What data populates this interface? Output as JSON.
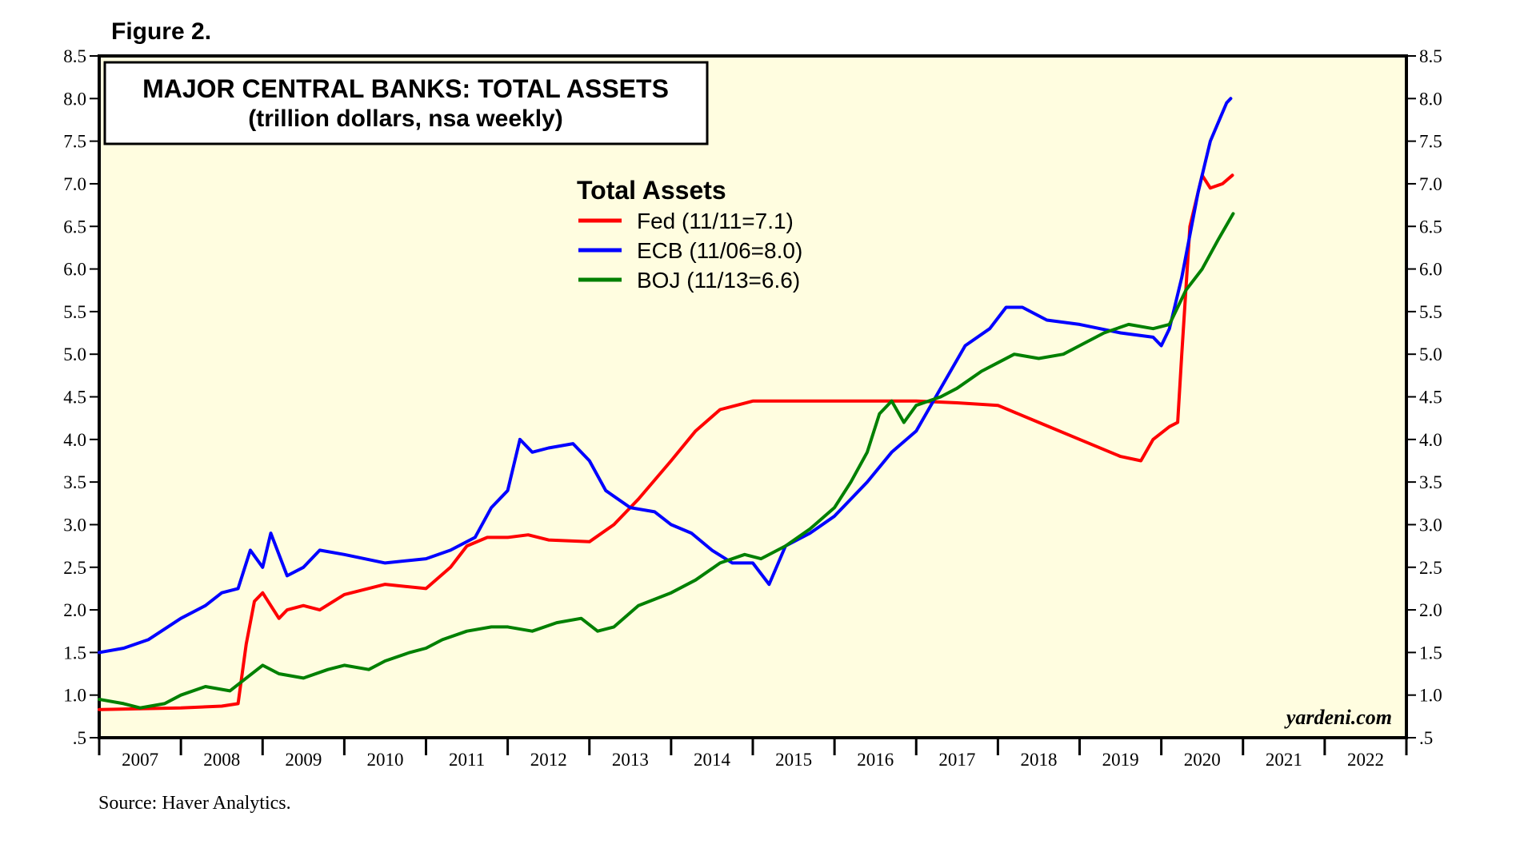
{
  "figure_label": "Figure 2.",
  "title": {
    "line1": "MAJOR CENTRAL BANKS: TOTAL ASSETS",
    "line2": "(trillion dollars, nsa weekly)"
  },
  "legend": {
    "title": "Total Assets",
    "placement": "upper-center"
  },
  "watermark": "yardeni.com",
  "source": "Source: Haver Analytics.",
  "colors": {
    "background": "#fffde0",
    "Fed": "#ff0000",
    "ECB": "#0000ff",
    "BOJ": "#008000"
  },
  "chart_data": {
    "type": "line",
    "title": "MAJOR CENTRAL BANKS: TOTAL ASSETS",
    "subtitle": "(trillion dollars, nsa weekly)",
    "xlabel": "",
    "ylabel": "",
    "xlim": [
      2007,
      2023
    ],
    "ylim": [
      0.5,
      8.5
    ],
    "x_ticks": [
      "2007",
      "2008",
      "2009",
      "2010",
      "2011",
      "2012",
      "2013",
      "2014",
      "2015",
      "2016",
      "2017",
      "2018",
      "2019",
      "2020",
      "2021",
      "2022"
    ],
    "y_ticks": [
      ".5",
      "1.0",
      "1.5",
      "2.0",
      "2.5",
      "3.0",
      "3.5",
      "4.0",
      "4.5",
      "5.0",
      "5.5",
      "6.0",
      "6.5",
      "7.0",
      "7.5",
      "8.0",
      "8.5"
    ],
    "grid": false,
    "legend_position": "upper-center",
    "series": [
      {
        "name": "Fed",
        "label": "Fed (11/11=7.1)",
        "color": "#ff0000",
        "points": [
          [
            2007.0,
            0.83
          ],
          [
            2007.5,
            0.84
          ],
          [
            2008.0,
            0.85
          ],
          [
            2008.5,
            0.87
          ],
          [
            2008.7,
            0.9
          ],
          [
            2008.8,
            1.6
          ],
          [
            2008.9,
            2.1
          ],
          [
            2009.0,
            2.2
          ],
          [
            2009.1,
            2.05
          ],
          [
            2009.2,
            1.9
          ],
          [
            2009.3,
            2.0
          ],
          [
            2009.5,
            2.05
          ],
          [
            2009.7,
            2.0
          ],
          [
            2010.0,
            2.18
          ],
          [
            2010.5,
            2.3
          ],
          [
            2011.0,
            2.25
          ],
          [
            2011.3,
            2.5
          ],
          [
            2011.5,
            2.75
          ],
          [
            2011.75,
            2.85
          ],
          [
            2012.0,
            2.85
          ],
          [
            2012.25,
            2.88
          ],
          [
            2012.5,
            2.82
          ],
          [
            2013.0,
            2.8
          ],
          [
            2013.3,
            3.0
          ],
          [
            2013.6,
            3.3
          ],
          [
            2014.0,
            3.75
          ],
          [
            2014.3,
            4.1
          ],
          [
            2014.6,
            4.35
          ],
          [
            2015.0,
            4.45
          ],
          [
            2016.0,
            4.45
          ],
          [
            2017.0,
            4.45
          ],
          [
            2017.5,
            4.43
          ],
          [
            2018.0,
            4.4
          ],
          [
            2018.5,
            4.2
          ],
          [
            2019.0,
            4.0
          ],
          [
            2019.5,
            3.8
          ],
          [
            2019.75,
            3.75
          ],
          [
            2019.9,
            4.0
          ],
          [
            2020.1,
            4.15
          ],
          [
            2020.2,
            4.2
          ],
          [
            2020.25,
            5.0
          ],
          [
            2020.35,
            6.5
          ],
          [
            2020.5,
            7.1
          ],
          [
            2020.6,
            6.95
          ],
          [
            2020.75,
            7.0
          ],
          [
            2020.87,
            7.1
          ]
        ]
      },
      {
        "name": "ECB",
        "label": "ECB (11/06=8.0)",
        "color": "#0000ff",
        "points": [
          [
            2007.0,
            1.5
          ],
          [
            2007.3,
            1.55
          ],
          [
            2007.6,
            1.65
          ],
          [
            2008.0,
            1.9
          ],
          [
            2008.3,
            2.05
          ],
          [
            2008.5,
            2.2
          ],
          [
            2008.7,
            2.25
          ],
          [
            2008.85,
            2.7
          ],
          [
            2009.0,
            2.5
          ],
          [
            2009.1,
            2.9
          ],
          [
            2009.3,
            2.4
          ],
          [
            2009.5,
            2.5
          ],
          [
            2009.7,
            2.7
          ],
          [
            2010.0,
            2.65
          ],
          [
            2010.5,
            2.55
          ],
          [
            2011.0,
            2.6
          ],
          [
            2011.3,
            2.7
          ],
          [
            2011.6,
            2.85
          ],
          [
            2011.8,
            3.2
          ],
          [
            2012.0,
            3.4
          ],
          [
            2012.15,
            4.0
          ],
          [
            2012.3,
            3.85
          ],
          [
            2012.5,
            3.9
          ],
          [
            2012.8,
            3.95
          ],
          [
            2013.0,
            3.75
          ],
          [
            2013.2,
            3.4
          ],
          [
            2013.5,
            3.2
          ],
          [
            2013.8,
            3.15
          ],
          [
            2014.0,
            3.0
          ],
          [
            2014.25,
            2.9
          ],
          [
            2014.5,
            2.7
          ],
          [
            2014.75,
            2.55
          ],
          [
            2015.0,
            2.55
          ],
          [
            2015.2,
            2.3
          ],
          [
            2015.4,
            2.75
          ],
          [
            2015.7,
            2.9
          ],
          [
            2016.0,
            3.1
          ],
          [
            2016.4,
            3.5
          ],
          [
            2016.7,
            3.85
          ],
          [
            2017.0,
            4.1
          ],
          [
            2017.3,
            4.6
          ],
          [
            2017.6,
            5.1
          ],
          [
            2017.9,
            5.3
          ],
          [
            2018.1,
            5.55
          ],
          [
            2018.3,
            5.55
          ],
          [
            2018.6,
            5.4
          ],
          [
            2019.0,
            5.35
          ],
          [
            2019.5,
            5.25
          ],
          [
            2019.9,
            5.2
          ],
          [
            2020.0,
            5.1
          ],
          [
            2020.1,
            5.3
          ],
          [
            2020.25,
            5.9
          ],
          [
            2020.45,
            6.9
          ],
          [
            2020.6,
            7.5
          ],
          [
            2020.8,
            7.95
          ],
          [
            2020.85,
            8.0
          ]
        ]
      },
      {
        "name": "BOJ",
        "label": "BOJ (11/13=6.6)",
        "color": "#008000",
        "points": [
          [
            2007.0,
            0.95
          ],
          [
            2007.3,
            0.9
          ],
          [
            2007.5,
            0.85
          ],
          [
            2007.8,
            0.9
          ],
          [
            2008.0,
            1.0
          ],
          [
            2008.3,
            1.1
          ],
          [
            2008.6,
            1.05
          ],
          [
            2008.8,
            1.2
          ],
          [
            2009.0,
            1.35
          ],
          [
            2009.2,
            1.25
          ],
          [
            2009.5,
            1.2
          ],
          [
            2009.8,
            1.3
          ],
          [
            2010.0,
            1.35
          ],
          [
            2010.3,
            1.3
          ],
          [
            2010.5,
            1.4
          ],
          [
            2010.8,
            1.5
          ],
          [
            2011.0,
            1.55
          ],
          [
            2011.2,
            1.65
          ],
          [
            2011.5,
            1.75
          ],
          [
            2011.8,
            1.8
          ],
          [
            2012.0,
            1.8
          ],
          [
            2012.3,
            1.75
          ],
          [
            2012.6,
            1.85
          ],
          [
            2012.9,
            1.9
          ],
          [
            2013.1,
            1.75
          ],
          [
            2013.3,
            1.8
          ],
          [
            2013.6,
            2.05
          ],
          [
            2014.0,
            2.2
          ],
          [
            2014.3,
            2.35
          ],
          [
            2014.6,
            2.55
          ],
          [
            2014.9,
            2.65
          ],
          [
            2015.1,
            2.6
          ],
          [
            2015.4,
            2.75
          ],
          [
            2015.7,
            2.95
          ],
          [
            2016.0,
            3.2
          ],
          [
            2016.2,
            3.5
          ],
          [
            2016.4,
            3.85
          ],
          [
            2016.55,
            4.3
          ],
          [
            2016.7,
            4.45
          ],
          [
            2016.85,
            4.2
          ],
          [
            2017.0,
            4.4
          ],
          [
            2017.3,
            4.5
          ],
          [
            2017.5,
            4.6
          ],
          [
            2017.8,
            4.8
          ],
          [
            2018.0,
            4.9
          ],
          [
            2018.2,
            5.0
          ],
          [
            2018.5,
            4.95
          ],
          [
            2018.8,
            5.0
          ],
          [
            2019.0,
            5.1
          ],
          [
            2019.3,
            5.25
          ],
          [
            2019.6,
            5.35
          ],
          [
            2019.9,
            5.3
          ],
          [
            2020.1,
            5.35
          ],
          [
            2020.3,
            5.75
          ],
          [
            2020.5,
            6.0
          ],
          [
            2020.7,
            6.35
          ],
          [
            2020.88,
            6.65
          ]
        ]
      }
    ]
  }
}
